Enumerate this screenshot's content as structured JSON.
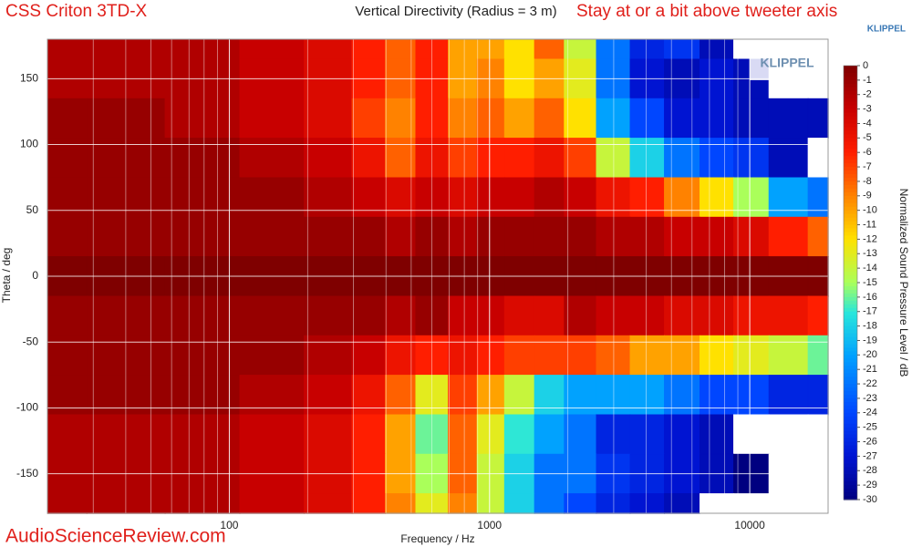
{
  "chart_data": {
    "type": "contour",
    "title": "Vertical Directivity (Radius = 3 m)",
    "product": "CSS Criton 3TD-X",
    "annotation": "Stay at or a bit above tweeter axis",
    "brand": "KLIPPEL",
    "logo": "KLIPPEL",
    "watermark": "AudioScienceReview.com",
    "x_label": "Frequency / Hz",
    "y_label": "Theta / deg",
    "z_label": "Normalized Sound Pressure Level / dB",
    "xscale": "log",
    "grid": true,
    "xlim": [
      20,
      20000
    ],
    "xticks": [
      100,
      1000,
      10000
    ],
    "ylim": [
      -180,
      180
    ],
    "yticks": [
      -150,
      -100,
      -50,
      0,
      50,
      100,
      150
    ],
    "zlim": [
      -30,
      0
    ],
    "zticks": [
      0,
      -1,
      -2,
      -3,
      -4,
      -5,
      -6,
      -7,
      -8,
      -9,
      -10,
      -11,
      -12,
      -13,
      -14,
      -15,
      -16,
      -17,
      -18,
      -19,
      -20,
      -21,
      -22,
      -23,
      -24,
      -25,
      -26,
      -27,
      -28,
      -29,
      -30
    ],
    "x": [
      20,
      40,
      80,
      150,
      250,
      350,
      450,
      600,
      800,
      1000,
      1300,
      1700,
      2200,
      3000,
      4000,
      5500,
      7500,
      10000,
      14000,
      20000
    ],
    "y": [
      180,
      150,
      120,
      90,
      60,
      30,
      0,
      -30,
      -60,
      -90,
      -120,
      -150,
      -180
    ],
    "z": [
      [
        -2,
        -2,
        -2,
        -3,
        -4,
        -6,
        -8,
        -6,
        -10,
        -10,
        -12,
        -8,
        -14,
        -22,
        -26,
        -25,
        -28,
        -32,
        -32,
        -32
      ],
      [
        -2,
        -2,
        -2,
        -3,
        -4,
        -6,
        -8,
        -6,
        -10,
        -9,
        -12,
        -10,
        -13,
        -22,
        -27,
        -28,
        -27,
        -28,
        -32,
        -32
      ],
      [
        -1,
        -1,
        -2,
        -3,
        -4,
        -7,
        -9,
        -6,
        -9,
        -8,
        -10,
        -8,
        -12,
        -20,
        -24,
        -27,
        -27,
        -28,
        -28,
        -28
      ],
      [
        -1,
        -1,
        -1,
        -2,
        -3,
        -5,
        -8,
        -5,
        -7,
        -6,
        -6,
        -5,
        -7,
        -14,
        -18,
        -22,
        -24,
        -25,
        -28,
        -32
      ],
      [
        -1,
        -1,
        -1,
        -1,
        -2,
        -3,
        -4,
        -3,
        -4,
        -3,
        -3,
        -2,
        -3,
        -5,
        -6,
        -9,
        -12,
        -15,
        -20,
        -22
      ],
      [
        -1,
        -1,
        -1,
        -1,
        -1,
        -1,
        -2,
        -1,
        -2,
        -1,
        -1,
        -1,
        -1,
        -2,
        -2,
        -3,
        -3,
        -4,
        -6,
        -8
      ],
      [
        0,
        0,
        0,
        0,
        0,
        0,
        0,
        0,
        0,
        0,
        0,
        0,
        0,
        0,
        0,
        0,
        0,
        0,
        0,
        0
      ],
      [
        -1,
        -1,
        -1,
        -1,
        -1,
        -1,
        -2,
        -1,
        -3,
        -3,
        -4,
        -4,
        -2,
        -3,
        -3,
        -4,
        -4,
        -5,
        -5,
        -6
      ],
      [
        -1,
        -1,
        -1,
        -1,
        -2,
        -3,
        -5,
        -6,
        -5,
        -6,
        -7,
        -7,
        -7,
        -8,
        -10,
        -10,
        -12,
        -13,
        -14,
        -16
      ],
      [
        -1,
        -1,
        -1,
        -2,
        -3,
        -5,
        -8,
        -13,
        -7,
        -10,
        -14,
        -18,
        -20,
        -20,
        -20,
        -22,
        -24,
        -24,
        -26,
        -26
      ],
      [
        -2,
        -2,
        -2,
        -3,
        -4,
        -6,
        -10,
        -16,
        -8,
        -13,
        -17,
        -20,
        -22,
        -26,
        -26,
        -27,
        -28,
        -32,
        -32,
        -32
      ],
      [
        -2,
        -2,
        -2,
        -3,
        -4,
        -6,
        -10,
        -15,
        -8,
        -14,
        -18,
        -22,
        -22,
        -25,
        -26,
        -27,
        -28,
        -30,
        -32,
        -32
      ],
      [
        -2,
        -2,
        -2,
        -3,
        -4,
        -6,
        -9,
        -13,
        -9,
        -14,
        -18,
        -22,
        -24,
        -26,
        -27,
        -28,
        -32,
        -32,
        -32,
        -32
      ]
    ]
  }
}
